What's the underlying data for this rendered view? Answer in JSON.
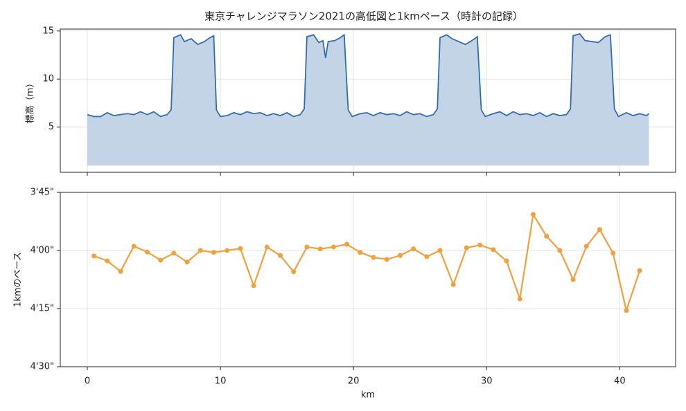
{
  "chart_data": [
    {
      "type": "area",
      "title": "東京チャレンジマラソン2021の高低図と1kmペース（時計の記録）",
      "ylabel": "標高（m）",
      "x": [
        0,
        0.5,
        1,
        1.5,
        2,
        2.5,
        3,
        3.5,
        4,
        4.5,
        5,
        5.5,
        6,
        6.3,
        6.5,
        7,
        7.3,
        7.8,
        8.3,
        8.8,
        9.2,
        9.5,
        9.7,
        10,
        10.5,
        11,
        11.5,
        12,
        12.5,
        13,
        13.5,
        14,
        14.5,
        15,
        15.5,
        16,
        16.3,
        16.5,
        17,
        17.4,
        17.7,
        17.9,
        18.1,
        18.6,
        19,
        19.3,
        19.6,
        19.9,
        20.5,
        21,
        21.5,
        22,
        22.5,
        23,
        23.5,
        24,
        24.5,
        25,
        25.5,
        26,
        26.3,
        26.5,
        27,
        27.4,
        27.9,
        28.4,
        28.9,
        29.3,
        29.6,
        29.9,
        30.5,
        31,
        31.5,
        32,
        32.5,
        33,
        33.5,
        34,
        34.5,
        35,
        35.5,
        36,
        36.3,
        36.5,
        37,
        37.4,
        37.9,
        38.4,
        38.9,
        39.3,
        39.6,
        39.9,
        40.5,
        41,
        41.5,
        42,
        42.195
      ],
      "series": [
        {
          "color": "#2f6db0",
          "fill": "#c3d4e6",
          "values": [
            6.3,
            6.1,
            6.1,
            6.5,
            6.2,
            6.3,
            6.4,
            6.3,
            6.6,
            6.3,
            6.6,
            6.1,
            6.3,
            6.8,
            14.3,
            14.6,
            13.9,
            14.2,
            13.6,
            13.9,
            14.3,
            14.5,
            6.8,
            6.1,
            6.2,
            6.5,
            6.3,
            6.6,
            6.4,
            6.5,
            6.2,
            6.4,
            6.2,
            6.5,
            6.1,
            6.3,
            6.9,
            14.4,
            14.6,
            13.8,
            14.0,
            12.2,
            13.9,
            14.0,
            14.3,
            14.6,
            6.8,
            6.1,
            6.4,
            6.5,
            6.2,
            6.5,
            6.3,
            6.4,
            6.2,
            6.6,
            6.3,
            6.4,
            6.1,
            6.3,
            6.9,
            14.3,
            14.6,
            14.2,
            13.9,
            13.6,
            14.0,
            14.4,
            6.8,
            6.1,
            6.4,
            6.6,
            6.2,
            6.6,
            6.3,
            6.4,
            6.2,
            6.5,
            6.1,
            6.4,
            6.2,
            6.3,
            6.9,
            14.5,
            14.7,
            14.0,
            13.9,
            13.8,
            14.4,
            14.6,
            6.9,
            6.1,
            6.5,
            6.2,
            6.4,
            6.2,
            6.4
          ]
        }
      ],
      "fill_to": 1,
      "xlim": [
        -2.03,
        44.2
      ],
      "xticks": [
        0,
        10,
        20,
        30,
        40
      ],
      "ylim": [
        0.3,
        15.2
      ],
      "yticks": [
        5,
        10,
        15
      ],
      "grid": true
    },
    {
      "type": "line",
      "ylabel": "1kmのペース",
      "xlabel": "km",
      "x": [
        0.5,
        1.5,
        2.5,
        3.5,
        4.5,
        5.5,
        6.5,
        7.5,
        8.5,
        9.5,
        10.5,
        11.5,
        12.5,
        13.5,
        14.5,
        15.5,
        16.5,
        17.5,
        18.5,
        19.5,
        20.5,
        21.5,
        22.5,
        23.5,
        24.5,
        25.5,
        26.5,
        27.5,
        28.5,
        29.5,
        30.5,
        31.5,
        32.5,
        33.5,
        34.5,
        35.5,
        36.5,
        37.5,
        38.5,
        39.5,
        40.5,
        41.5
      ],
      "series": [
        {
          "color": "#f0a03c",
          "values": [
            241.4,
            242.7,
            245.4,
            238.9,
            240.4,
            242.5,
            240.7,
            243.0,
            240.0,
            240.5,
            240.0,
            239.5,
            249.1,
            239.1,
            241.3,
            245.5,
            239.1,
            239.6,
            239.1,
            238.4,
            240.5,
            241.8,
            242.3,
            241.3,
            239.6,
            241.6,
            240.0,
            248.8,
            239.3,
            238.6,
            239.8,
            242.7,
            252.5,
            230.7,
            236.3,
            240.0,
            247.5,
            238.9,
            234.6,
            240.7,
            255.5,
            245.2
          ]
        }
      ],
      "xlim": [
        -2.03,
        44.2
      ],
      "xticks": [
        0,
        10,
        20,
        30,
        40
      ],
      "ylim": [
        225,
        270
      ],
      "y_inverted": true,
      "yticks": [
        {
          "value": 225,
          "label": "3'45\""
        },
        {
          "value": 240,
          "label": "4'00\""
        },
        {
          "value": 255,
          "label": "4'15\""
        },
        {
          "value": 270,
          "label": "4'30\""
        }
      ],
      "grid": true
    }
  ]
}
